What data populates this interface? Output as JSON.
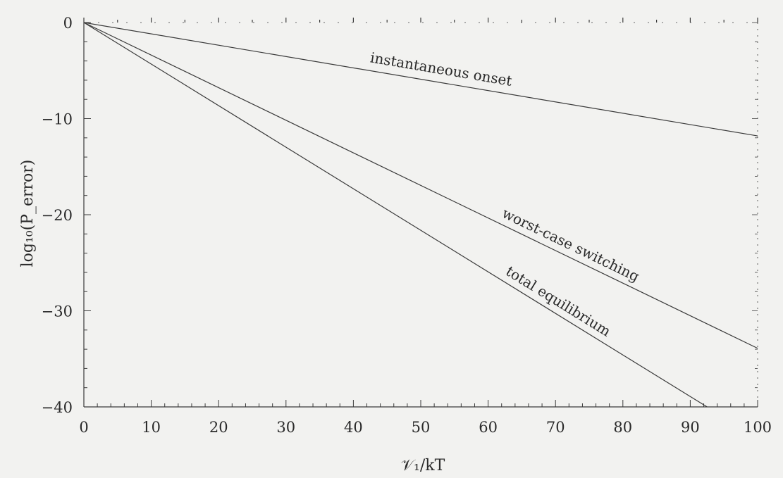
{
  "chart_data": {
    "type": "line",
    "xlabel": "𝒱₁/kT",
    "ylabel": "log₁₀(P_error)",
    "xlim": [
      0,
      100
    ],
    "ylim": [
      -40,
      0
    ],
    "xticks": [
      0,
      10,
      20,
      30,
      40,
      50,
      60,
      70,
      80,
      90,
      100
    ],
    "yticks": [
      0,
      -10,
      -20,
      -30,
      -40
    ],
    "grid": false,
    "series": [
      {
        "name": "instantaneous onset",
        "x": [
          0,
          100
        ],
        "y": [
          0,
          -11.8
        ]
      },
      {
        "name": "worst-case switching",
        "x": [
          0,
          100
        ],
        "y": [
          0,
          -33.9
        ]
      },
      {
        "name": "total equilibrium",
        "x": [
          0,
          92.5
        ],
        "y": [
          0,
          -40
        ]
      }
    ]
  },
  "colors": {
    "line": "#3a3a3a",
    "axis": "#3a3a3a",
    "background": "#f2f2f0"
  }
}
